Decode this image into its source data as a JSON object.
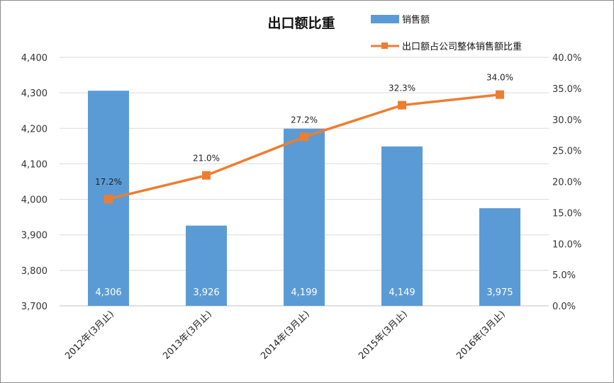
{
  "chart_data": {
    "type": "bar",
    "title": "出口额比重",
    "categories": [
      "2012年(3月止)",
      "2013年(3月止)",
      "2014年(3月止)",
      "2015年(3月止)",
      "2016年(3月止)"
    ],
    "series": [
      {
        "name": "销售额",
        "type": "bar",
        "axis": "left",
        "color": "#5b9bd5",
        "values": [
          4306,
          3926,
          4199,
          4149,
          3975
        ],
        "labels": [
          "4,306",
          "3,926",
          "4,199",
          "4,149",
          "3,975"
        ]
      },
      {
        "name": "出口额占公司整体销售额比重",
        "type": "line",
        "axis": "right",
        "color": "#ed7d31",
        "marker": "square",
        "values": [
          17.2,
          21.0,
          27.2,
          32.3,
          34.0
        ],
        "labels": [
          "17.2%",
          "21.0%",
          "27.2%",
          "32.3%",
          "34.0%"
        ]
      }
    ],
    "y_left": {
      "lim": [
        3700,
        4400
      ],
      "ticks": [
        "3,700",
        "3,800",
        "3,900",
        "4,000",
        "4,100",
        "4,200",
        "4,300",
        "4,400"
      ]
    },
    "y_right": {
      "lim": [
        0,
        40
      ],
      "ticks": [
        "0.0%",
        "5.0%",
        "10.0%",
        "15.0%",
        "20.0%",
        "25.0%",
        "30.0%",
        "35.0%",
        "40.0%"
      ]
    },
    "grid": true,
    "legend": "top-right"
  }
}
